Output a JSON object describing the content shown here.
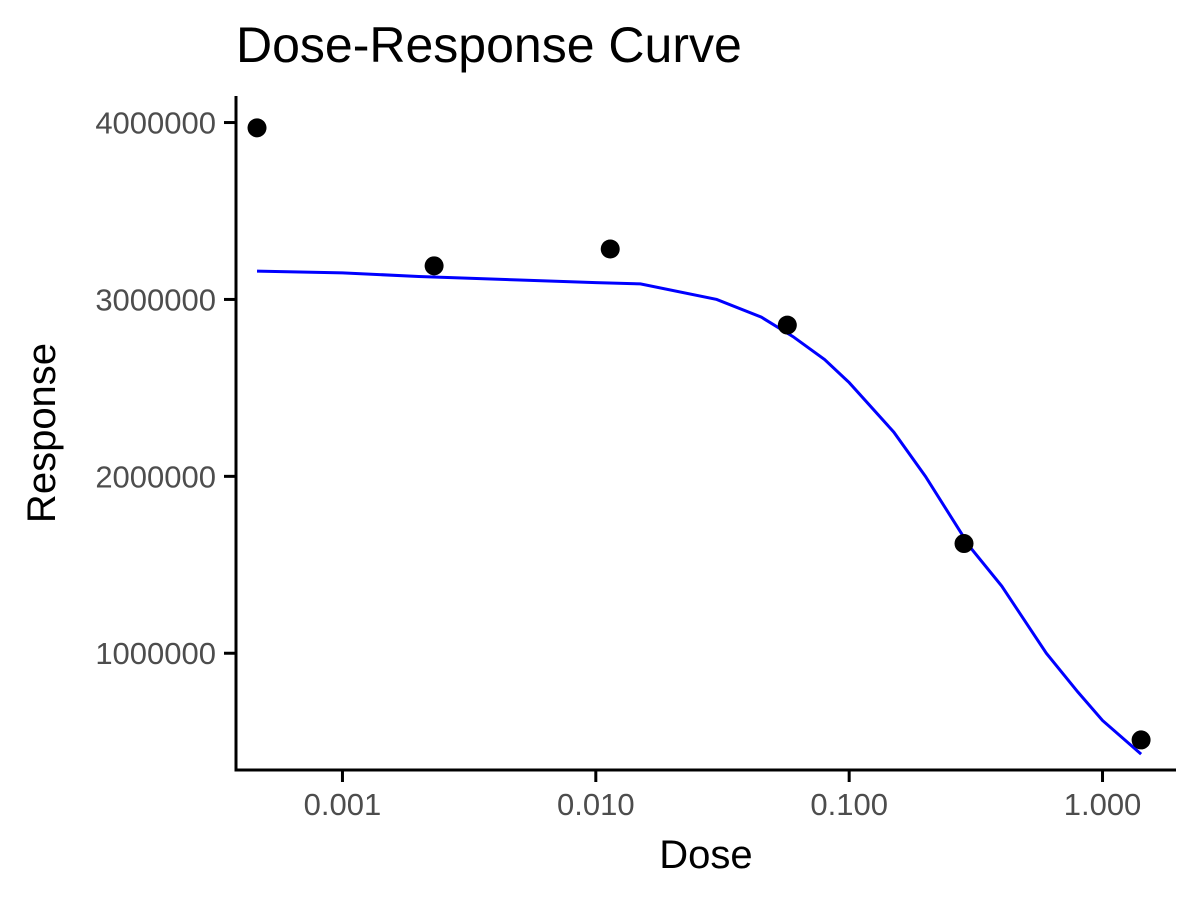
{
  "chart_data": {
    "type": "scatter",
    "title": "Dose-Response Curve",
    "xlabel": "Dose",
    "ylabel": "Response",
    "x_scale": "log10",
    "xlim": [
      0.00038,
      1.95
    ],
    "ylim": [
      340000,
      4150000
    ],
    "x_ticks": [
      {
        "value": 0.001,
        "label": "0.001"
      },
      {
        "value": 0.01,
        "label": "0.010"
      },
      {
        "value": 0.1,
        "label": "0.100"
      },
      {
        "value": 1,
        "label": "1.000"
      }
    ],
    "y_ticks": [
      {
        "value": 1000000,
        "label": "1000000"
      },
      {
        "value": 2000000,
        "label": "2000000"
      },
      {
        "value": 3000000,
        "label": "3000000"
      },
      {
        "value": 4000000,
        "label": "4000000"
      }
    ],
    "grid": false,
    "legend": "none",
    "series": [
      {
        "kind": "points",
        "color": "#000000",
        "x": [
          0.00046,
          0.0023,
          0.0114,
          0.057,
          0.284,
          1.42
        ],
        "y": [
          3970000,
          3190000,
          3285000,
          2855000,
          1620000,
          510000
        ]
      },
      {
        "kind": "line",
        "color": "#0000ff",
        "x": [
          0.00046,
          0.001,
          0.002,
          0.005,
          0.01,
          0.015,
          0.03,
          0.045,
          0.06,
          0.08,
          0.1,
          0.15,
          0.2,
          0.3,
          0.4,
          0.6,
          0.8,
          1.0,
          1.42
        ],
        "y": [
          3160000,
          3150000,
          3130000,
          3110000,
          3095000,
          3088000,
          3000000,
          2900000,
          2790000,
          2660000,
          2530000,
          2250000,
          2000000,
          1600000,
          1380000,
          1000000,
          780000,
          620000,
          430000
        ]
      }
    ]
  }
}
